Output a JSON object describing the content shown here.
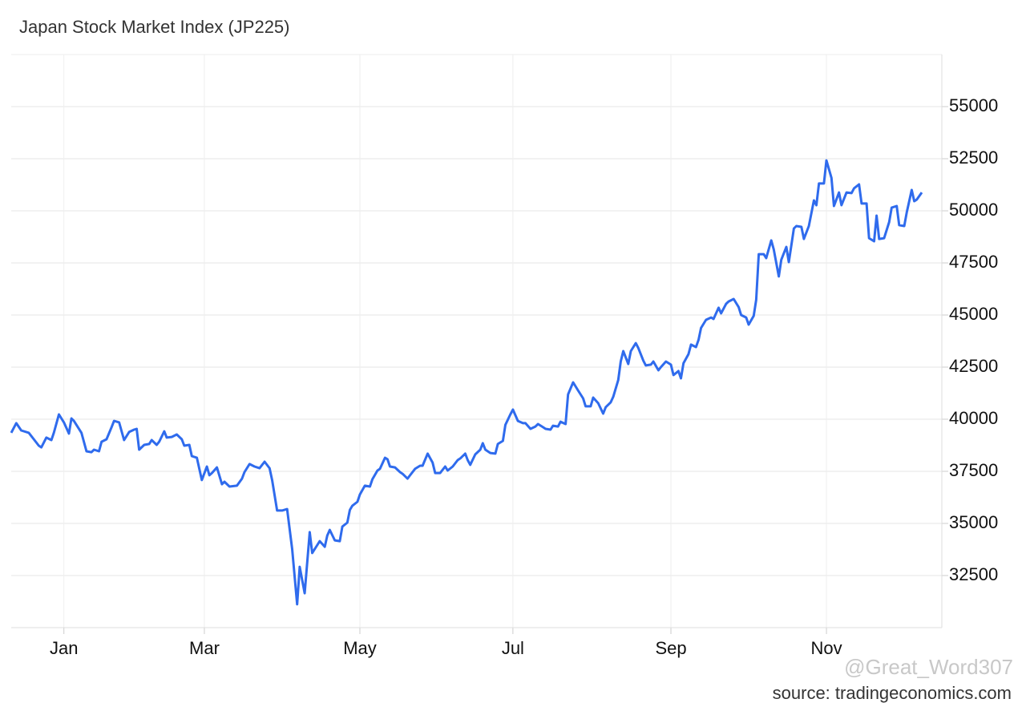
{
  "chart_data": {
    "type": "line",
    "title": "Japan Stock Market Index (JP225)",
    "source": "source: tradingeconomics.com",
    "watermark": "@Great_Word307",
    "xlim": [
      -21,
      350
    ],
    "xticks": [
      {
        "value": 0,
        "label": "Jan"
      },
      {
        "value": 56,
        "label": "Mar"
      },
      {
        "value": 118,
        "label": "May"
      },
      {
        "value": 179,
        "label": "Jul"
      },
      {
        "value": 242,
        "label": "Sep"
      },
      {
        "value": 304,
        "label": "Nov"
      }
    ],
    "ylim": [
      30000,
      57500
    ],
    "yticks": [
      32500,
      35000,
      37500,
      40000,
      42500,
      45000,
      47500,
      50000,
      52500,
      55000
    ],
    "grid": true,
    "x": [
      -21,
      -19,
      -17,
      -14,
      -12,
      -10,
      -9,
      -7,
      -5,
      -4,
      -2,
      0,
      2,
      3,
      4,
      7,
      9,
      11,
      12,
      14,
      15,
      17,
      19,
      20,
      22,
      24,
      26,
      28,
      29,
      30,
      32,
      34,
      35,
      37,
      38,
      40,
      41,
      43,
      45,
      47,
      48,
      50,
      51,
      53,
      55,
      57,
      58,
      59,
      61,
      63,
      64,
      66,
      69,
      71,
      72,
      74,
      76,
      78,
      80,
      82,
      83,
      85,
      87,
      89,
      91,
      93,
      94,
      96,
      98,
      99,
      101,
      102,
      104,
      105,
      106,
      108,
      110,
      111,
      113,
      114,
      115,
      117,
      118,
      120,
      122,
      123,
      125,
      126,
      128,
      129,
      130,
      132,
      134,
      135,
      137,
      138,
      140,
      142,
      143,
      145,
      147,
      148,
      150,
      152,
      153,
      155,
      157,
      158,
      160,
      161,
      162,
      164,
      166,
      167,
      168,
      170,
      172,
      173,
      175,
      176,
      178,
      179,
      181,
      183,
      184,
      186,
      188,
      189,
      191,
      192,
      194,
      195,
      197,
      198,
      200,
      201,
      203,
      205,
      207,
      208,
      210,
      211,
      213,
      215,
      216,
      218,
      219,
      221,
      222,
      223,
      225,
      226,
      228,
      229,
      231,
      232,
      234,
      235,
      237,
      238,
      240,
      242,
      243,
      245,
      246,
      247,
      249,
      250,
      252,
      253,
      254,
      256,
      258,
      259,
      261,
      262,
      264,
      265,
      267,
      269,
      270,
      272,
      273,
      275,
      276,
      277,
      279,
      280,
      282,
      283,
      285,
      286,
      288,
      289,
      291,
      292,
      294,
      295,
      297,
      299,
      300,
      301,
      303,
      304,
      306,
      307,
      309,
      310,
      312,
      314,
      315,
      317,
      318,
      320,
      321,
      323,
      324,
      325,
      327,
      329,
      330,
      332,
      333,
      335,
      336,
      338,
      339,
      340,
      342
    ],
    "series": [
      {
        "name": "JP225",
        "color": "#2f6bed",
        "values": [
          39350,
          39810,
          39460,
          39350,
          39040,
          38730,
          38650,
          39120,
          39000,
          39350,
          40230,
          39850,
          39310,
          40040,
          39920,
          39350,
          38460,
          38420,
          38540,
          38460,
          38920,
          39040,
          39620,
          39920,
          39850,
          39000,
          39390,
          39500,
          39540,
          38540,
          38770,
          38810,
          39000,
          38770,
          38920,
          39420,
          39120,
          39150,
          39270,
          39040,
          38730,
          38770,
          38230,
          38150,
          37080,
          37730,
          37310,
          37420,
          37690,
          36880,
          37000,
          36770,
          36810,
          37150,
          37460,
          37850,
          37730,
          37650,
          37960,
          37650,
          37080,
          35620,
          35620,
          35690,
          33770,
          31120,
          32920,
          31650,
          34580,
          33580,
          33960,
          34150,
          33880,
          34420,
          34690,
          34190,
          34150,
          34850,
          35040,
          35650,
          35850,
          36040,
          36390,
          36810,
          36770,
          37120,
          37540,
          37620,
          38150,
          38080,
          37730,
          37690,
          37460,
          37380,
          37150,
          37310,
          37620,
          37770,
          37770,
          38350,
          37920,
          37420,
          37420,
          37730,
          37540,
          37730,
          38040,
          38120,
          38350,
          38040,
          37810,
          38310,
          38540,
          38850,
          38540,
          38380,
          38350,
          38810,
          38960,
          39730,
          40230,
          40460,
          39920,
          39810,
          39810,
          39540,
          39650,
          39770,
          39620,
          39540,
          39500,
          39690,
          39650,
          39880,
          39770,
          41190,
          41770,
          41380,
          41000,
          40620,
          40620,
          41040,
          40770,
          40270,
          40580,
          40810,
          41080,
          41880,
          42770,
          43270,
          42650,
          43270,
          43650,
          43420,
          42810,
          42580,
          42620,
          42770,
          42350,
          42500,
          42770,
          42620,
          42120,
          42310,
          41960,
          42690,
          43120,
          43580,
          43460,
          43810,
          44380,
          44770,
          44880,
          44810,
          45350,
          45080,
          45540,
          45650,
          45770,
          45380,
          45000,
          44880,
          44540,
          44960,
          45730,
          47920,
          47920,
          47730,
          48580,
          48150,
          46850,
          47650,
          48270,
          47540,
          49150,
          49270,
          49230,
          48650,
          49270,
          50500,
          50270,
          51310,
          51310,
          52420,
          51580,
          50230,
          50880,
          50270,
          50880,
          50850,
          51080,
          51270,
          50350,
          50350,
          48690,
          48540,
          49770,
          48650,
          48690,
          49460,
          50150,
          50230,
          49310,
          49270,
          49920,
          51000,
          50460,
          50540,
          50880
        ]
      }
    ]
  }
}
